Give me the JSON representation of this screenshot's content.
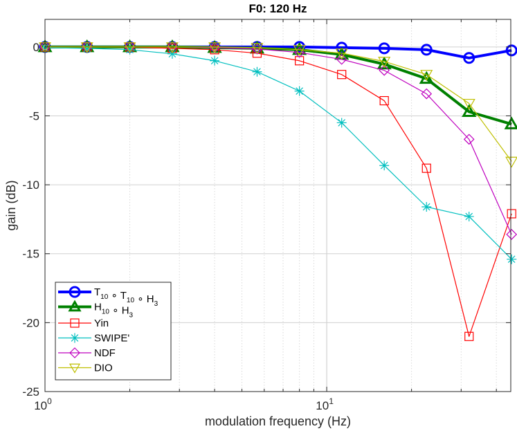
{
  "chart_data": {
    "type": "line",
    "title": "F0: 120 Hz",
    "xlabel": "modulation frequency (Hz)",
    "ylabel": "gain (dB)",
    "xscale": "log",
    "xlim": [
      1,
      45
    ],
    "ylim": [
      -25,
      2
    ],
    "x_ticks": [
      {
        "value": 1,
        "base": "10",
        "exp": "0"
      },
      {
        "value": 10,
        "base": "10",
        "exp": "1"
      }
    ],
    "y_ticks": [
      {
        "value": 0,
        "label": "0"
      },
      {
        "value": -5,
        "label": "-5"
      },
      {
        "value": -10,
        "label": "-10"
      },
      {
        "value": -15,
        "label": "-15"
      },
      {
        "value": -20,
        "label": "-20"
      },
      {
        "value": -25,
        "label": "-25"
      }
    ],
    "grid": true,
    "legend_position": "bottom-left",
    "x": [
      1,
      1.41,
      2,
      2.83,
      4,
      5.66,
      8,
      11.3,
      16,
      22.6,
      32,
      45.3
    ],
    "series": [
      {
        "name": "T10 ∘ T10 ∘ H3",
        "legend_parts": [
          [
            "T",
            "10"
          ],
          [
            "∘ T",
            "10"
          ],
          [
            "∘ H",
            "3"
          ]
        ],
        "color": "#0000ff",
        "marker": "circle",
        "line_width": 4,
        "marker_size": 7,
        "values": [
          0,
          0,
          0,
          0,
          0,
          0,
          0,
          -0.05,
          -0.1,
          -0.2,
          -0.8,
          -0.25
        ]
      },
      {
        "name": "H10 ∘ H3",
        "legend_parts": [
          [
            "H",
            "10"
          ],
          [
            "∘ H",
            "3"
          ]
        ],
        "color": "#008000",
        "marker": "triangle-up",
        "line_width": 4,
        "marker_size": 8,
        "values": [
          0,
          0,
          0,
          0,
          -0.05,
          -0.1,
          -0.2,
          -0.55,
          -1.25,
          -2.3,
          -4.7,
          -5.6
        ]
      },
      {
        "name": "Yin",
        "legend_parts": [
          [
            "Yin",
            ""
          ]
        ],
        "color": "#ff0000",
        "marker": "square",
        "line_width": 1.2,
        "marker_size": 6,
        "values": [
          0,
          0,
          0,
          -0.1,
          -0.2,
          -0.45,
          -1.0,
          -2.0,
          -3.9,
          -8.8,
          -21.0,
          -12.1
        ]
      },
      {
        "name": "SWIPE'",
        "legend_parts": [
          [
            "SWIPE'",
            ""
          ]
        ],
        "color": "#00bfbf",
        "marker": "star",
        "line_width": 1.2,
        "marker_size": 7,
        "values": [
          -0.05,
          -0.1,
          -0.2,
          -0.5,
          -1.0,
          -1.8,
          -3.2,
          -5.5,
          -8.6,
          -11.6,
          -12.3,
          -15.4
        ]
      },
      {
        "name": "NDF",
        "legend_parts": [
          [
            "NDF",
            ""
          ]
        ],
        "color": "#bf00bf",
        "marker": "diamond",
        "line_width": 1.2,
        "marker_size": 7,
        "values": [
          0,
          0,
          0,
          0,
          -0.05,
          -0.15,
          -0.4,
          -0.9,
          -1.7,
          -3.4,
          -6.7,
          -13.6
        ]
      },
      {
        "name": "DIO",
        "legend_parts": [
          [
            "DIO",
            ""
          ]
        ],
        "color": "#bfbf00",
        "marker": "triangle-down",
        "line_width": 1.2,
        "marker_size": 8,
        "values": [
          0,
          0,
          0,
          0,
          0,
          -0.05,
          -0.2,
          -0.45,
          -1.05,
          -2.0,
          -4.1,
          -8.3
        ]
      }
    ]
  }
}
